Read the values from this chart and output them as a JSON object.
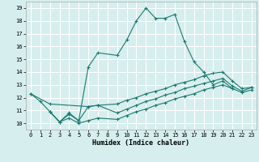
{
  "xlabel": "Humidex (Indice chaleur)",
  "ylabel": "",
  "background_color": "#d6eeee",
  "grid_color": "#ffffff",
  "line_color": "#1a7a6e",
  "xlim": [
    -0.5,
    23.5
  ],
  "ylim": [
    9.5,
    19.5
  ],
  "xticks": [
    0,
    1,
    2,
    3,
    4,
    5,
    6,
    7,
    8,
    9,
    10,
    11,
    12,
    13,
    14,
    15,
    16,
    17,
    18,
    19,
    20,
    21,
    22,
    23
  ],
  "yticks": [
    10,
    11,
    12,
    13,
    14,
    15,
    16,
    17,
    18,
    19
  ],
  "series1_x": [
    0,
    1,
    2,
    3,
    4,
    5,
    6,
    7,
    9,
    10,
    11,
    12,
    13,
    14,
    15,
    16,
    17,
    18,
    19,
    20,
    21
  ],
  "series1_y": [
    12.3,
    11.7,
    10.9,
    10.1,
    10.8,
    10.2,
    14.4,
    15.5,
    15.3,
    16.5,
    18.0,
    19.0,
    18.2,
    18.2,
    18.5,
    16.4,
    14.8,
    14.0,
    13.0,
    13.3,
    12.7
  ],
  "series2_x": [
    0,
    2,
    6,
    7,
    9,
    10,
    11,
    12,
    13,
    14,
    15,
    16,
    17,
    18,
    19,
    20,
    21,
    22,
    23
  ],
  "series2_y": [
    12.3,
    11.5,
    11.3,
    11.4,
    11.5,
    11.8,
    12.0,
    12.3,
    12.5,
    12.7,
    13.0,
    13.2,
    13.4,
    13.7,
    13.9,
    14.0,
    13.3,
    12.7,
    12.8
  ],
  "series3_x": [
    2,
    3,
    4,
    5,
    6,
    7,
    9,
    10,
    11,
    12,
    13,
    14,
    15,
    16,
    17,
    18,
    19,
    20,
    21,
    22,
    23
  ],
  "series3_y": [
    10.9,
    10.1,
    10.7,
    10.2,
    11.3,
    11.4,
    10.8,
    11.1,
    11.4,
    11.7,
    11.9,
    12.2,
    12.4,
    12.7,
    12.9,
    13.1,
    13.3,
    13.5,
    12.9,
    12.5,
    12.8
  ],
  "series4_x": [
    2,
    3,
    4,
    5,
    6,
    7,
    9,
    10,
    11,
    12,
    13,
    14,
    15,
    16,
    17,
    18,
    19,
    20,
    21,
    22,
    23
  ],
  "series4_y": [
    10.9,
    10.1,
    10.4,
    10.0,
    10.2,
    10.4,
    10.3,
    10.6,
    10.9,
    11.1,
    11.4,
    11.6,
    11.9,
    12.1,
    12.3,
    12.6,
    12.8,
    13.0,
    12.7,
    12.4,
    12.6
  ]
}
